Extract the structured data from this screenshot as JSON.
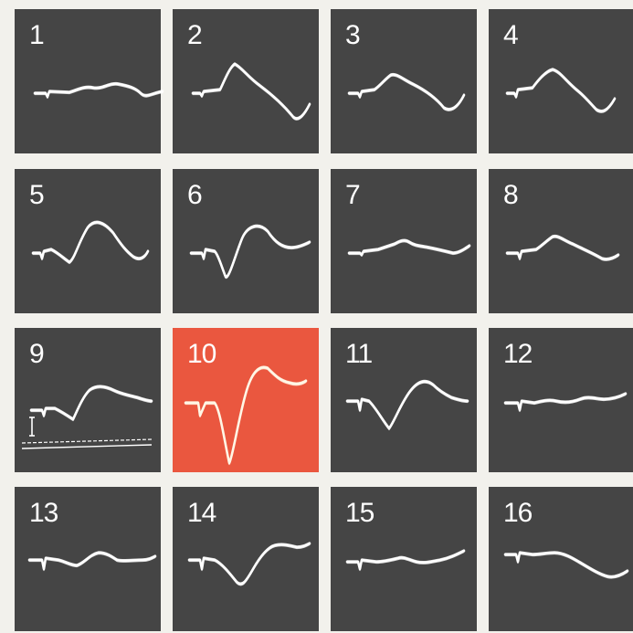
{
  "panels": [
    {
      "label": "1"
    },
    {
      "label": "2"
    },
    {
      "label": "3"
    },
    {
      "label": "4"
    },
    {
      "label": "5"
    },
    {
      "label": "6"
    },
    {
      "label": "7"
    },
    {
      "label": "8"
    },
    {
      "label": "9"
    },
    {
      "label": "10"
    },
    {
      "label": "11"
    },
    {
      "label": "12"
    },
    {
      "label": "13"
    },
    {
      "label": "14"
    },
    {
      "label": "15"
    },
    {
      "label": "16"
    }
  ],
  "highlighted_panel": "10",
  "colors": {
    "panel_background": "#454545",
    "highlight_background": "#ea573f",
    "trace": "#ffffff",
    "page_background": "#f2f1ec"
  }
}
